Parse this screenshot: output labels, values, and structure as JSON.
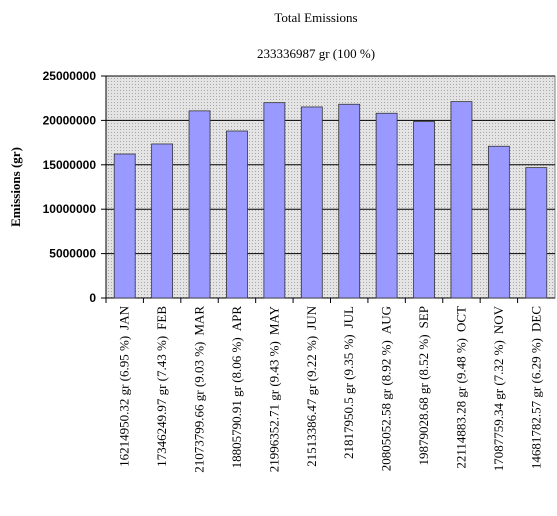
{
  "chart_data": {
    "type": "bar",
    "title": "Total Emissions",
    "subtitle": "233336987 gr (100 %)",
    "y_label": "Emissions (gr)",
    "categories": [
      "JAN",
      "FEB",
      "MAR",
      "APR",
      "MAY",
      "JUN",
      "JUL",
      "AUG",
      "SEP",
      "OCT",
      "NOV",
      "DEC"
    ],
    "values": [
      16214950.32,
      17346249.97,
      21073799.66,
      18805790.91,
      21996352.71,
      21513386.47,
      21817950.5,
      20805052.58,
      19879028.68,
      22114883.28,
      17087759.34,
      14681782.57
    ],
    "value_labels": [
      "16214950.32 gr (6.95 %)",
      "17346249.97 gr (7.43 %)",
      "21073799.66 gr (9.03 %)",
      "18805790.91 gr (8.06 %)",
      "21996352.71 gr (9.43 %)",
      "21513386.47 gr (9.22 %)",
      "21817950.5 gr (9.35 %)",
      "20805052.58 gr (8.92 %)",
      "19879028.68 gr (8.52 %)",
      "22114883.28 gr (9.48 %)",
      "17087759.34 gr (7.32 %)",
      "14681782.57 gr (6.29 %)"
    ],
    "color": "#9999ff",
    "ylim": [
      0,
      25000000
    ],
    "yticks": [
      0,
      5000000,
      10000000,
      15000000,
      20000000,
      25000000
    ],
    "grid": true
  }
}
